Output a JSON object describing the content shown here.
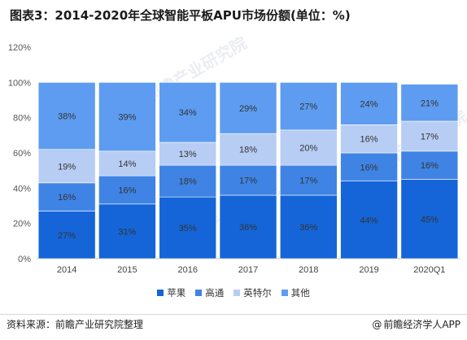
{
  "title": "图表3：2014-2020年全球智能平板APU市场份额(单位：%)",
  "chart_data": {
    "type": "bar",
    "stacked": true,
    "categories": [
      "2014",
      "2015",
      "2016",
      "2017",
      "2018",
      "2019",
      "2020Q1"
    ],
    "series": [
      {
        "name": "苹果",
        "color": "#1565d8",
        "values": [
          27,
          31,
          35,
          36,
          36,
          44,
          45
        ]
      },
      {
        "name": "高通",
        "color": "#3f84e5",
        "values": [
          16,
          16,
          18,
          17,
          17,
          16,
          16
        ]
      },
      {
        "name": "英特尔",
        "color": "#b7cdf3",
        "values": [
          19,
          14,
          13,
          18,
          20,
          16,
          17
        ]
      },
      {
        "name": "其他",
        "color": "#5d9cf0",
        "values": [
          38,
          39,
          34,
          29,
          27,
          24,
          21
        ]
      }
    ],
    "yticks": [
      "0%",
      "20%",
      "40%",
      "60%",
      "80%",
      "100%",
      "120%"
    ],
    "ylim": [
      0,
      120
    ],
    "legend_position": "bottom",
    "grid": false
  },
  "footer": {
    "source": "资料来源：前瞻产业研究院整理",
    "brand": "前瞻经济学人APP",
    "brand_icon": "@"
  },
  "watermark": "前瞻产业研究院"
}
